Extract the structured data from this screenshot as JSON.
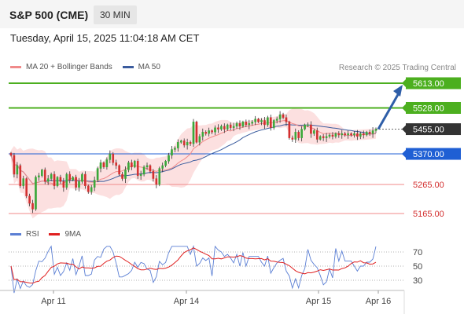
{
  "header": {
    "title": "S&P 500 (CME)",
    "timeframe": "30 MIN"
  },
  "datetime": "Tuesday, April 15, 2025 11:04:18 AM CET",
  "legend": {
    "price": [
      {
        "label": "MA 20 + Bollinger Bands",
        "color": "#f08a8a"
      },
      {
        "label": "MA 50",
        "color": "#3b5c9e"
      }
    ],
    "rsi": [
      {
        "label": "RSI",
        "color": "#5b7fd4"
      },
      {
        "label": "9MA",
        "color": "#e02020"
      }
    ]
  },
  "credit": "Research © 2025 Trading Central",
  "colors": {
    "bull": "#3aa83a",
    "bear": "#d32f2f",
    "target": "#4caf1f",
    "pivot": "#1f5fd4",
    "support": "#f08a8a",
    "arrow": "#2e5ea8",
    "current_bg": "#333333"
  },
  "chart_data": {
    "type": "candlestick",
    "x_ticks": [
      "Apr 11",
      "Apr 14",
      "Apr 15",
      "Apr 16"
    ],
    "y_range": [
      5120,
      5640
    ],
    "levels": [
      {
        "value": 5613,
        "label": "5613.00",
        "kind": "target"
      },
      {
        "value": 5528,
        "label": "5528.00",
        "kind": "target"
      },
      {
        "value": 5455,
        "label": "5455.00",
        "kind": "current"
      },
      {
        "value": 5370,
        "label": "5370.00",
        "kind": "pivot"
      },
      {
        "value": 5265,
        "label": "5265.00",
        "kind": "support"
      },
      {
        "value": 5165,
        "label": "5165.00",
        "kind": "support"
      }
    ],
    "forecast_arrow": {
      "from": 5455,
      "to": 5613
    },
    "close": [
      5365,
      5300,
      5330,
      5260,
      5285,
      5225,
      5200,
      5180,
      5290,
      5295,
      5315,
      5275,
      5285,
      5300,
      5260,
      5290,
      5275,
      5255,
      5300,
      5280,
      5290,
      5255,
      5275,
      5300,
      5260,
      5240,
      5255,
      5280,
      5320,
      5340,
      5325,
      5350,
      5370,
      5340,
      5330,
      5300,
      5285,
      5315,
      5340,
      5325,
      5345,
      5295,
      5300,
      5325,
      5330,
      5310,
      5285,
      5265,
      5320,
      5330,
      5345,
      5365,
      5385,
      5390,
      5410,
      5415,
      5400,
      5410,
      5405,
      5480,
      5410,
      5430,
      5445,
      5440,
      5450,
      5445,
      5460,
      5455,
      5465,
      5455,
      5470,
      5460,
      5465,
      5475,
      5465,
      5480,
      5470,
      5475,
      5480,
      5490,
      5480,
      5485,
      5470,
      5495,
      5460,
      5485,
      5490,
      5505,
      5495,
      5480,
      5425,
      5420,
      5445,
      5425,
      5455,
      5470,
      5470,
      5440,
      5450,
      5420,
      5430,
      5425,
      5430,
      5435,
      5430,
      5440,
      5435,
      5440,
      5435,
      5440,
      5435,
      5440,
      5430,
      5440,
      5435,
      5445,
      5440,
      5450,
      5455
    ],
    "rsi_levels": [
      70,
      50,
      30
    ],
    "rsi_range": [
      10,
      80
    ]
  }
}
